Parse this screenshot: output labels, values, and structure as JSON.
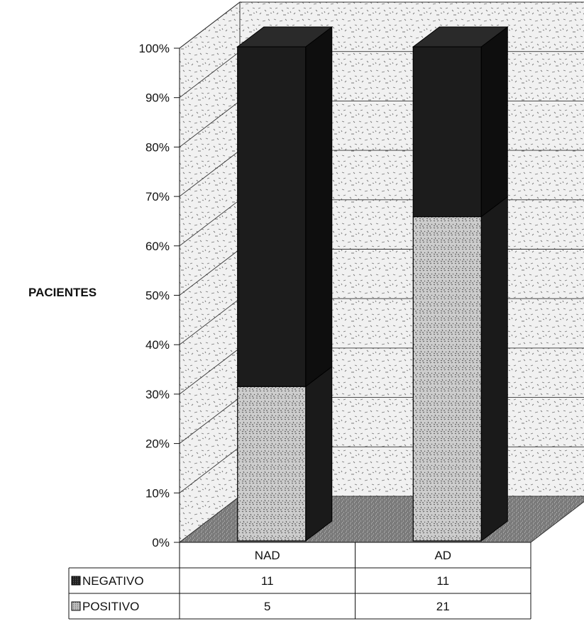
{
  "chart_data": {
    "type": "bar",
    "stacked": "percent",
    "view": "3d",
    "ylabel": "PACIENTES",
    "ylim": [
      0,
      100
    ],
    "yticks": [
      "0%",
      "10%",
      "20%",
      "30%",
      "40%",
      "50%",
      "60%",
      "70%",
      "80%",
      "90%",
      "100%"
    ],
    "categories": [
      "NAD",
      "AD"
    ],
    "series": [
      {
        "name": "NEGATIVO",
        "values": [
          11,
          11
        ],
        "color": "#1c1c1c"
      },
      {
        "name": "POSITIVO",
        "values": [
          5,
          21
        ],
        "color": "#c4c4c4"
      }
    ],
    "data_table": true,
    "grid": true
  }
}
